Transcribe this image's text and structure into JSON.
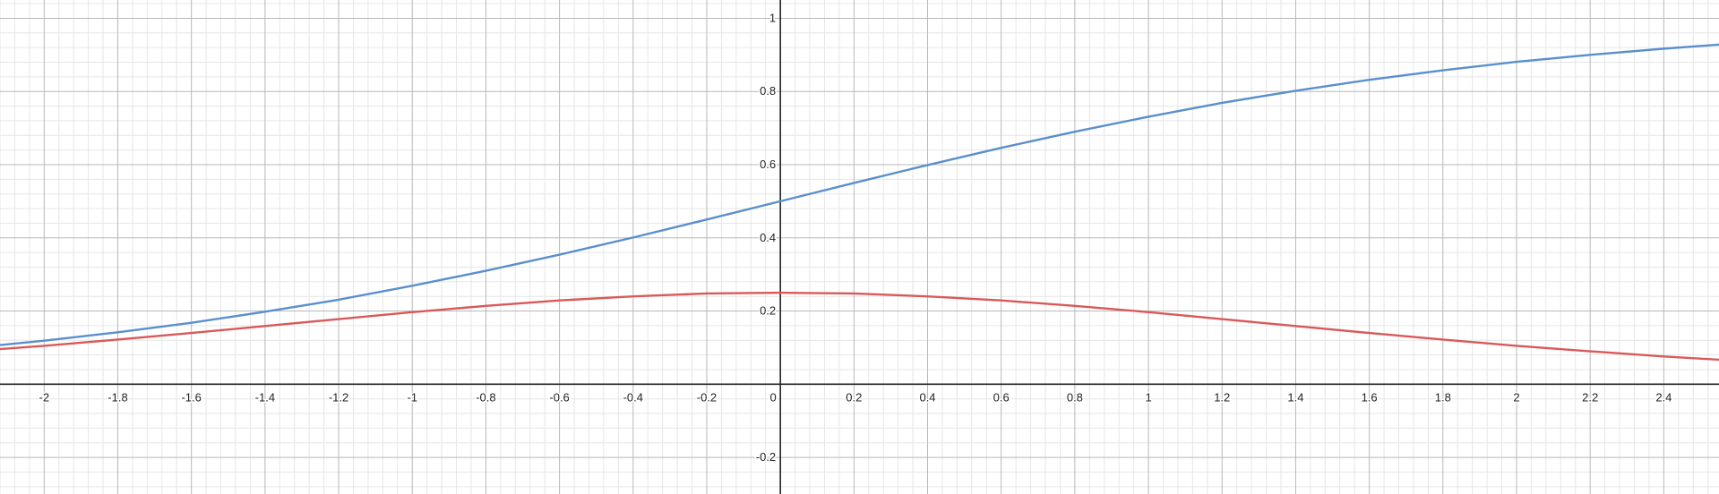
{
  "chart_data": {
    "type": "line",
    "title": "",
    "xlabel": "",
    "ylabel": "",
    "xlim": [
      -2.12,
      2.55
    ],
    "ylim": [
      -0.3,
      1.05
    ],
    "grid": true,
    "legend": "none",
    "x_ticks": [
      {
        "value": -2,
        "label": "-2"
      },
      {
        "value": -1.8,
        "label": "-1.8"
      },
      {
        "value": -1.6,
        "label": "-1.6"
      },
      {
        "value": -1.4,
        "label": "-1.4"
      },
      {
        "value": -1.2,
        "label": "-1.2"
      },
      {
        "value": -1,
        "label": "-1"
      },
      {
        "value": -0.8,
        "label": "-0.8"
      },
      {
        "value": -0.6,
        "label": "-0.6"
      },
      {
        "value": -0.4,
        "label": "-0.4"
      },
      {
        "value": -0.2,
        "label": "-0.2"
      },
      {
        "value": 0,
        "label": "0"
      },
      {
        "value": 0.2,
        "label": "0.2"
      },
      {
        "value": 0.4,
        "label": "0.4"
      },
      {
        "value": 0.6,
        "label": "0.6"
      },
      {
        "value": 0.8,
        "label": "0.8"
      },
      {
        "value": 1,
        "label": "1"
      },
      {
        "value": 1.2,
        "label": "1.2"
      },
      {
        "value": 1.4,
        "label": "1.4"
      },
      {
        "value": 1.6,
        "label": "1.6"
      },
      {
        "value": 1.8,
        "label": "1.8"
      },
      {
        "value": 2,
        "label": "2"
      },
      {
        "value": 2.2,
        "label": "2.2"
      },
      {
        "value": 2.4,
        "label": "2.4"
      }
    ],
    "y_ticks": [
      {
        "value": 1,
        "label": "1"
      },
      {
        "value": 0.8,
        "label": "0.8"
      },
      {
        "value": 0.6,
        "label": "0.6"
      },
      {
        "value": 0.4,
        "label": "0.4"
      },
      {
        "value": 0.2,
        "label": "0.2"
      },
      {
        "value": -0.2,
        "label": "-0.2"
      }
    ],
    "series": [
      {
        "color": "#5a8fcc",
        "x": [
          -2.12,
          -2.0,
          -1.8,
          -1.6,
          -1.4,
          -1.2,
          -1.0,
          -0.8,
          -0.6,
          -0.4,
          -0.2,
          0.0,
          0.2,
          0.4,
          0.6,
          0.8,
          1.0,
          1.2,
          1.4,
          1.6,
          1.8,
          2.0,
          2.2,
          2.4,
          2.55
        ],
        "y": [
          0.107,
          0.119,
          0.142,
          0.168,
          0.198,
          0.231,
          0.269,
          0.31,
          0.354,
          0.401,
          0.45,
          0.5,
          0.55,
          0.599,
          0.646,
          0.69,
          0.731,
          0.769,
          0.802,
          0.832,
          0.858,
          0.881,
          0.9,
          0.917,
          0.928
        ]
      },
      {
        "color": "#d9595a",
        "x": [
          -2.12,
          -2.0,
          -1.8,
          -1.6,
          -1.4,
          -1.2,
          -1.0,
          -0.8,
          -0.6,
          -0.4,
          -0.2,
          0.0,
          0.2,
          0.4,
          0.6,
          0.8,
          1.0,
          1.2,
          1.4,
          1.6,
          1.8,
          2.0,
          2.2,
          2.4,
          2.55
        ],
        "y": [
          0.096,
          0.105,
          0.122,
          0.14,
          0.159,
          0.178,
          0.197,
          0.214,
          0.229,
          0.24,
          0.248,
          0.25,
          0.248,
          0.24,
          0.229,
          0.214,
          0.197,
          0.178,
          0.159,
          0.14,
          0.122,
          0.105,
          0.09,
          0.076,
          0.067
        ]
      }
    ]
  }
}
